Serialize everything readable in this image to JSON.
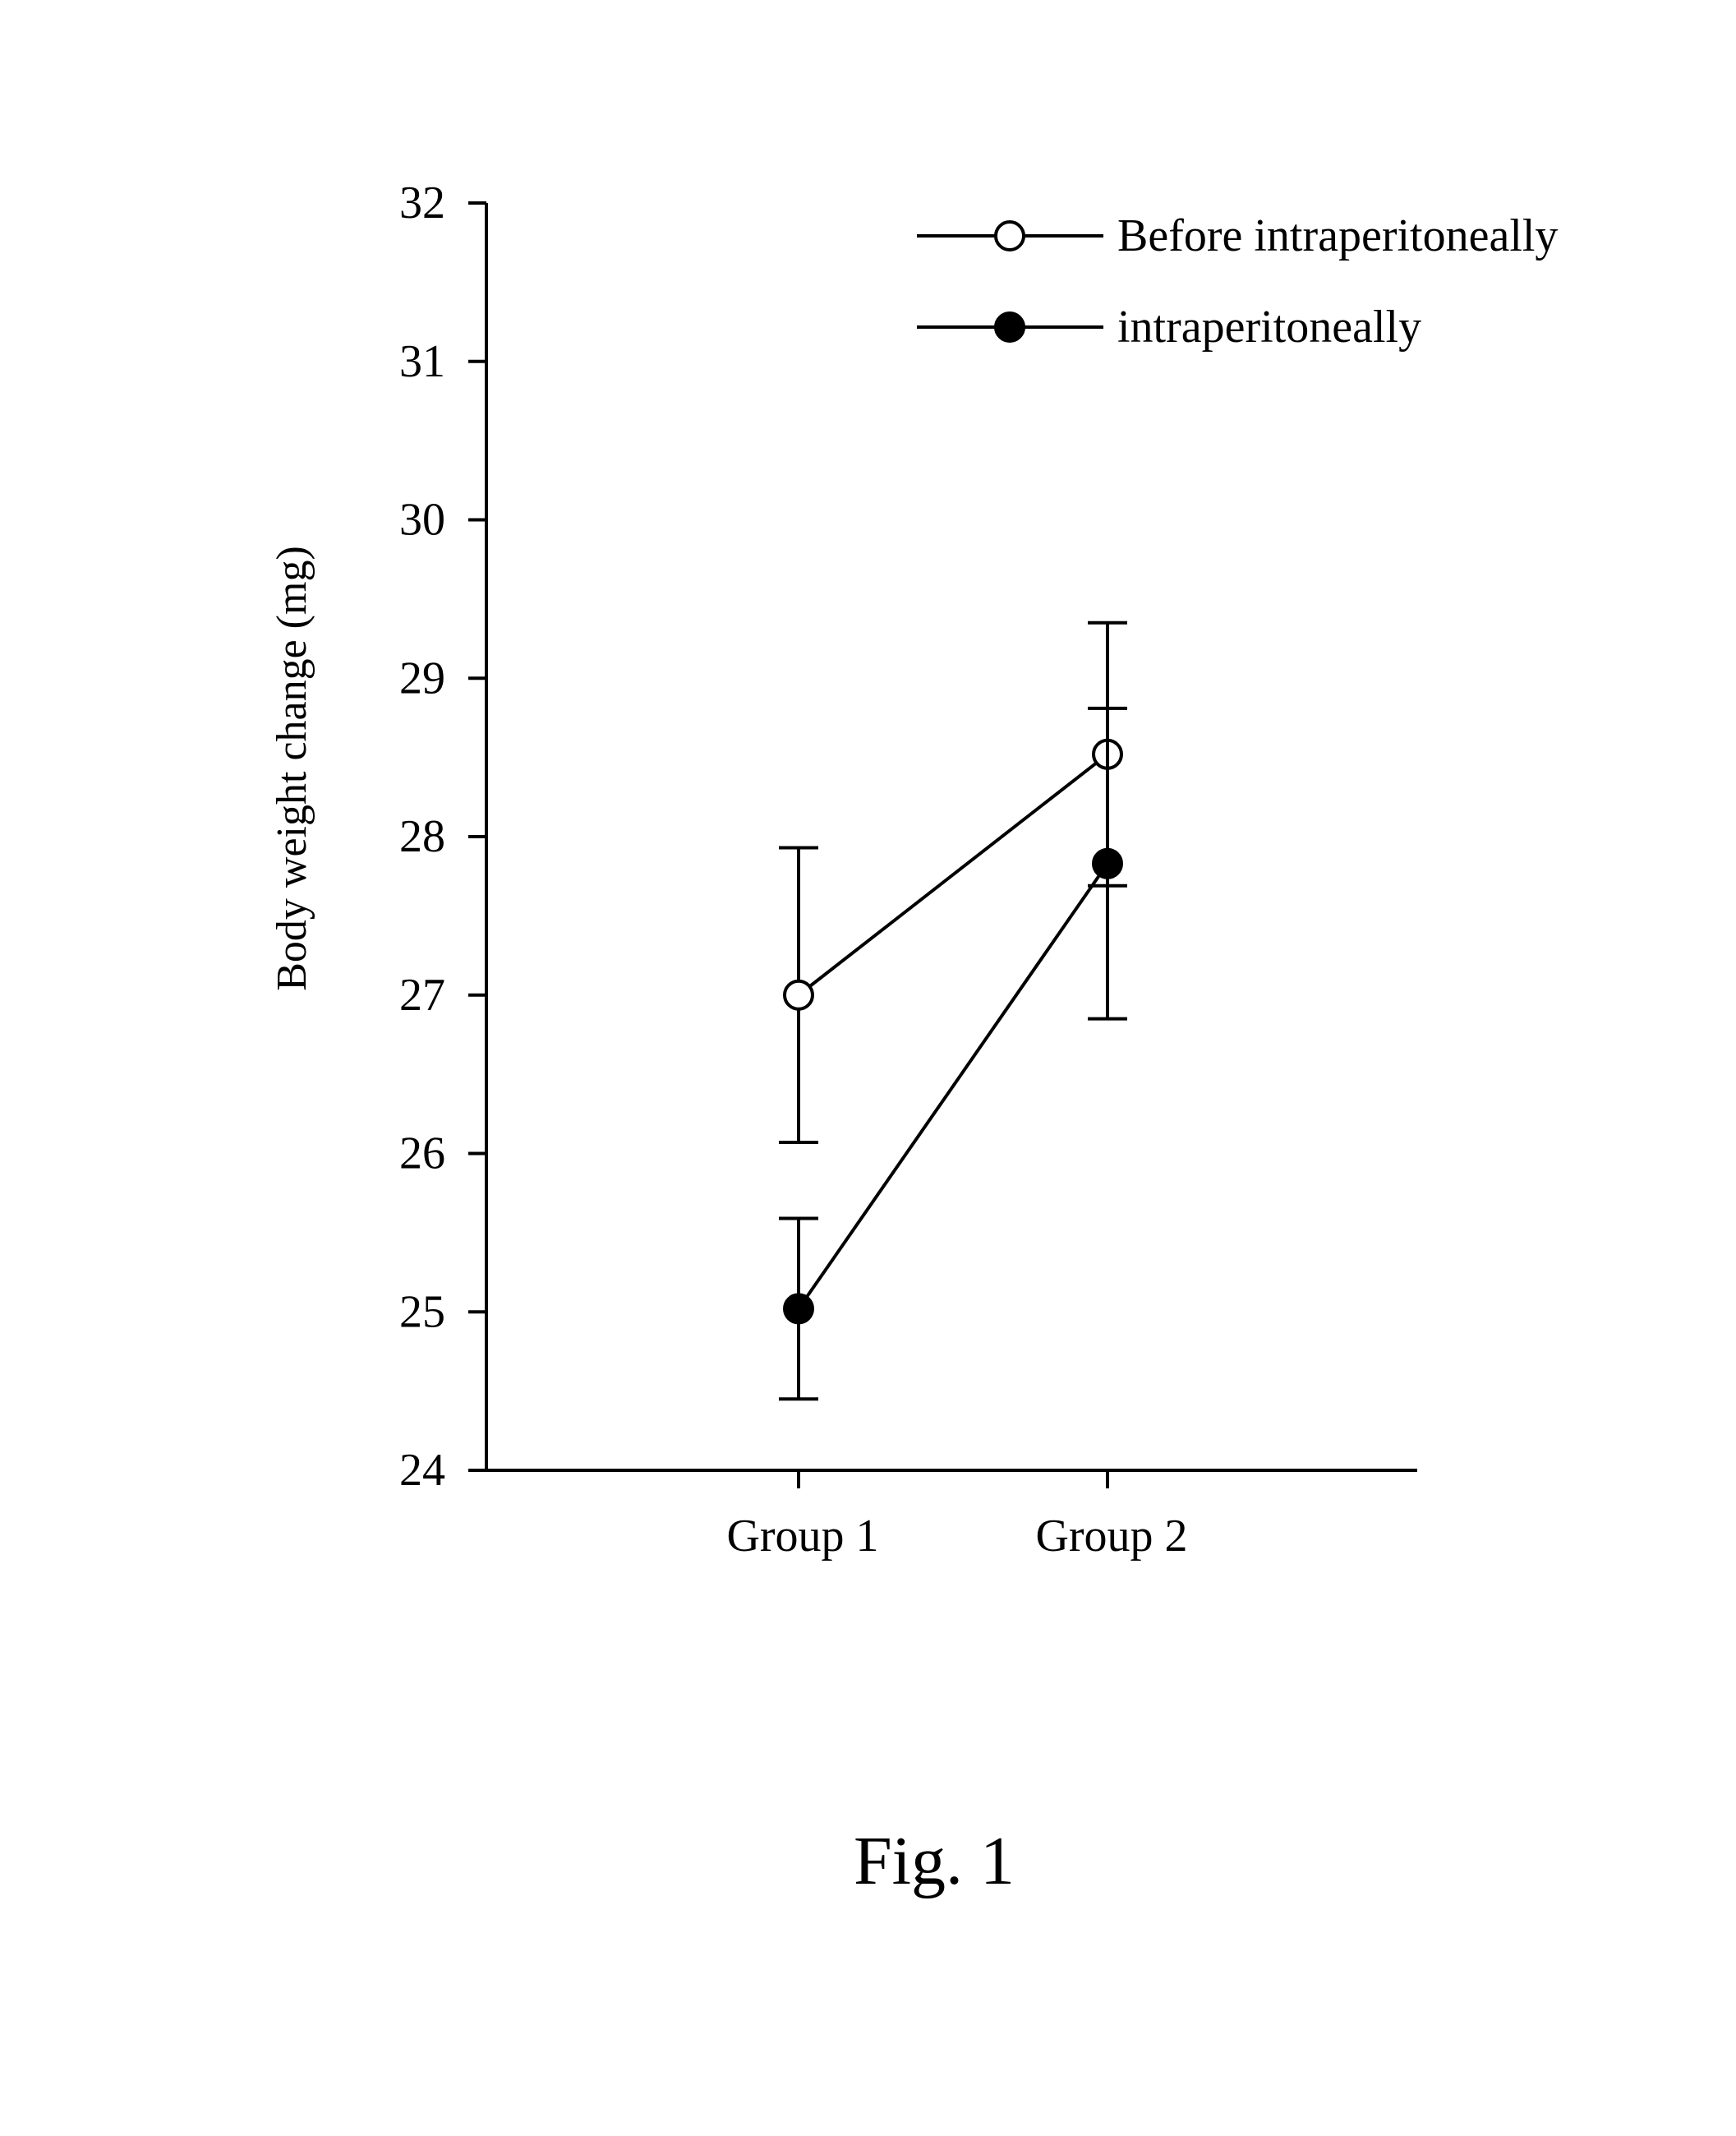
{
  "chart_data": {
    "type": "line",
    "title": "",
    "xlabel": "",
    "ylabel": "Body weight change (mg)",
    "categories": [
      "Group 1",
      "Group 2"
    ],
    "ylim": [
      24,
      32
    ],
    "yticks": [
      24,
      25,
      26,
      27,
      28,
      29,
      30,
      31,
      32
    ],
    "grid": false,
    "legend_position": "top-right",
    "series": [
      {
        "name": "Before intraperitoneally",
        "marker": "open-circle",
        "color": "#000000",
        "values": [
          27.0,
          28.52
        ],
        "error": [
          0.93,
          0.83
        ]
      },
      {
        "name": "intraperitoneally",
        "marker": "filled-circle",
        "color": "#000000",
        "values": [
          25.02,
          27.83
        ],
        "error": [
          0.57,
          0.98
        ]
      }
    ]
  },
  "caption": "Fig. 1"
}
